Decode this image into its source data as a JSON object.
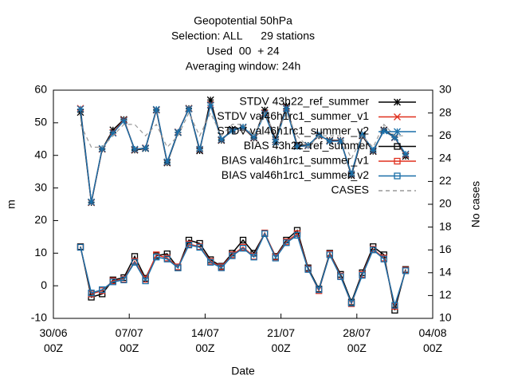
{
  "chart_data": {
    "type": "line",
    "title": [
      "Geopotential 50hPa",
      "Selection: ALL      29 stations",
      "Used  00  + 24",
      "Averaging window: 24h"
    ],
    "xlabel": "Date",
    "ylabel": "m",
    "y2label": "No cases",
    "x": [
      "02/07 12Z",
      "03/07 12Z",
      "04/07 12Z",
      "05/07 12Z",
      "06/07 12Z",
      "07/07 12Z",
      "08/07 12Z",
      "09/07 12Z",
      "10/07 12Z",
      "11/07 12Z",
      "12/07 12Z",
      "13/07 12Z",
      "14/07 12Z",
      "15/07 12Z",
      "16/07 12Z",
      "17/07 12Z",
      "18/07 12Z",
      "19/07 12Z",
      "20/07 12Z",
      "21/07 12Z",
      "22/07 12Z",
      "23/07 12Z",
      "24/07 12Z",
      "25/07 12Z",
      "26/07 12Z",
      "27/07 12Z",
      "28/07 12Z",
      "29/07 12Z",
      "30/07 12Z",
      "31/07 12Z",
      "01/08 12Z"
    ],
    "xlim": [
      "30/06 00Z",
      "04/08 00Z"
    ],
    "xticks": [
      "30/06 00Z",
      "07/07 00Z",
      "14/07 00Z",
      "21/07 00Z",
      "28/07 00Z",
      "04/08 00Z"
    ],
    "ylim": [
      -10,
      60
    ],
    "yticks": [
      -10,
      0,
      10,
      20,
      30,
      40,
      50,
      60
    ],
    "y2lim": [
      10,
      30
    ],
    "y2ticks": [
      10,
      12,
      14,
      16,
      18,
      20,
      22,
      24,
      26,
      28,
      30
    ],
    "legend": "top-right",
    "series": [
      {
        "name": "STDV 43h22_ref_summer",
        "color": "#000000",
        "marker": "star",
        "values": [
          53.2,
          25.5,
          41.9,
          47.8,
          51,
          41.6,
          42.1,
          53.9,
          37.7,
          47,
          54.4,
          41.4,
          57,
          44.6,
          48,
          48.5,
          45.3,
          53.9,
          44.8,
          55.1,
          43.1,
          43.1,
          46,
          44.6,
          44.6,
          33.8,
          46,
          41.2,
          47.8,
          45.6,
          39.7
        ]
      },
      {
        "name": "STDV val46h1rc1_summer_v1",
        "color": "#e0301e",
        "marker": "cross",
        "values": [
          54.4,
          25.6,
          42,
          47,
          50.8,
          41.8,
          42.3,
          54,
          37.9,
          47.2,
          54.3,
          41.8,
          55.6,
          44.8,
          47.6,
          48.6,
          45.5,
          53,
          44.2,
          54.6,
          42.8,
          42.9,
          46.2,
          44.4,
          44.5,
          34.2,
          46.3,
          41.5,
          47.6,
          45.4,
          40.2
        ]
      },
      {
        "name": "STDV val46h1rc1_summer_v2",
        "color": "#1a6fa8",
        "marker": "star",
        "values": [
          54.2,
          25.7,
          42.1,
          46.8,
          50.6,
          41.9,
          42.2,
          54.1,
          38,
          47.1,
          54.2,
          41.9,
          55.4,
          44.9,
          47.5,
          48.7,
          45.6,
          52.8,
          44.1,
          54.4,
          42.7,
          43,
          46.3,
          44.3,
          44.4,
          34.3,
          46.4,
          41.6,
          47.5,
          45.5,
          40.4
        ]
      },
      {
        "name": "BIAS 43h22_ref_summer",
        "color": "#000000",
        "marker": "square",
        "values": [
          12,
          -3.5,
          -2.5,
          1.8,
          2.5,
          9,
          2.3,
          9.2,
          9.8,
          5.5,
          14,
          13,
          8,
          6,
          10,
          14,
          10,
          16,
          9,
          14,
          17,
          5.5,
          -1,
          10,
          3.5,
          -5,
          4,
          12,
          9.5,
          -7.5,
          5
        ]
      },
      {
        "name": "BIAS val46h1rc1_summer_v1",
        "color": "#e0301e",
        "marker": "square",
        "values": [
          11.8,
          -2.5,
          -1.5,
          1.5,
          2,
          7.5,
          2,
          9.5,
          8.5,
          5.8,
          12.8,
          12,
          7.5,
          5.8,
          9.5,
          11.8,
          9,
          16.2,
          8.8,
          13.5,
          16,
          5.2,
          -1.5,
          9.8,
          3,
          -5.5,
          3.5,
          11.2,
          8.5,
          -6.3,
          4.8
        ]
      },
      {
        "name": "BIAS val46h1rc1_summer_v2",
        "color": "#1a6fa8",
        "marker": "square",
        "values": [
          11.8,
          -2.2,
          -1.2,
          1.2,
          1.8,
          7.2,
          1.5,
          8.8,
          8.2,
          5.5,
          12.5,
          11.8,
          7.2,
          5.5,
          9.2,
          11.5,
          8.8,
          16,
          8.5,
          13.2,
          15.5,
          5,
          -1.2,
          9.5,
          2.8,
          -5.3,
          3.2,
          11,
          8.2,
          -6,
          4.6
        ]
      },
      {
        "name": "CASES",
        "color": "#999999",
        "axis": "y2",
        "dashed": true,
        "values": [
          27,
          25,
          25,
          26,
          27,
          27,
          26,
          27,
          25,
          26,
          28,
          26,
          28,
          26,
          27,
          27,
          26,
          28,
          26,
          28,
          26,
          25,
          26,
          26,
          26,
          24,
          26,
          25,
          27,
          26,
          26
        ]
      }
    ]
  }
}
